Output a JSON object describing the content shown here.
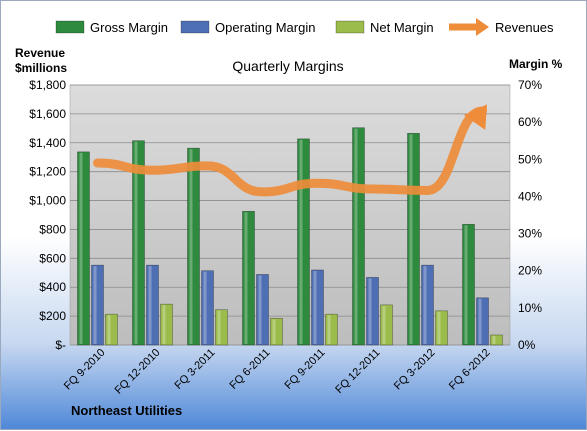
{
  "chart_data": {
    "type": "bar",
    "title": "Quarterly Margins",
    "company": "Northeast Utilities",
    "left_axis_label": [
      "Revenue",
      "$millions"
    ],
    "right_axis_label": "Margin %",
    "categories": [
      "FQ 9-2010",
      "FQ 12-2010",
      "FQ 3-2011",
      "FQ 6-2011",
      "FQ 9-2011",
      "FQ 12-2011",
      "FQ 3-2012",
      "FQ 6-2012"
    ],
    "left_ticks": [
      "$-",
      "$200",
      "$400",
      "$600",
      "$800",
      "$1,000",
      "$1,200",
      "$1,400",
      "$1,600",
      "$1,800"
    ],
    "right_ticks": [
      "0%",
      "10%",
      "20%",
      "30%",
      "40%",
      "50%",
      "60%",
      "70%"
    ],
    "ylim_left": [
      0,
      1800
    ],
    "ylim_right": [
      0,
      70
    ],
    "grid": true,
    "legend_position": "top",
    "series": [
      {
        "name": "Gross Margin",
        "axis": "right",
        "color": "#2e8b3e",
        "values": [
          52,
          55,
          53,
          36,
          55.5,
          58.5,
          57,
          32.5
        ]
      },
      {
        "name": "Operating Margin",
        "axis": "right",
        "color": "#4f6fb5",
        "values": [
          21.5,
          21.5,
          20,
          19,
          20.2,
          18.2,
          21.5,
          12.7
        ]
      },
      {
        "name": "Net Margin",
        "axis": "right",
        "color": "#9bbb4a",
        "values": [
          8.3,
          11,
          9.5,
          7.2,
          8.3,
          10.8,
          9.2,
          2.7
        ]
      },
      {
        "name": "Revenues",
        "axis": "left",
        "type": "line",
        "color": "#ee8c3a",
        "values": [
          1260,
          1210,
          1240,
          1060,
          1120,
          1080,
          1070,
          1620
        ]
      }
    ]
  }
}
